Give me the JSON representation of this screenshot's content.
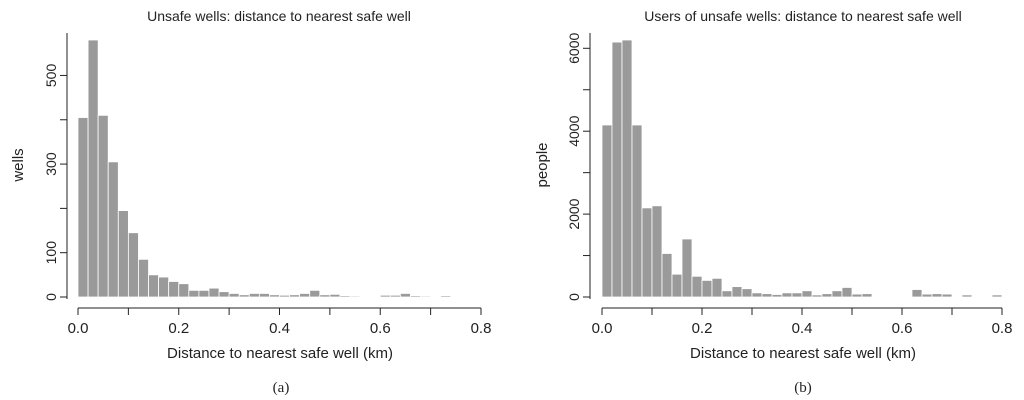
{
  "chart_data": [
    {
      "type": "bar",
      "title": "Unsafe wells:  distance to nearest safe well",
      "xlabel": "Distance to nearest safe well (km)",
      "ylabel": "wells",
      "caption": "(a)",
      "bin_width": 0.02,
      "bin_start": 0.0,
      "values": [
        405,
        580,
        410,
        305,
        195,
        145,
        85,
        50,
        45,
        35,
        30,
        15,
        15,
        20,
        12,
        8,
        5,
        8,
        8,
        5,
        4,
        5,
        8,
        15,
        5,
        6,
        3,
        1,
        0,
        0,
        4,
        4,
        8,
        3,
        2,
        0,
        3,
        0,
        0,
        0
      ],
      "x_ticks": [
        "0.0",
        "0.2",
        "0.4",
        "0.6",
        "0.8"
      ],
      "y_ticks": [
        "0",
        "100",
        "300",
        "500"
      ],
      "xlim": [
        0.0,
        0.8
      ],
      "ylim": [
        0,
        580
      ]
    },
    {
      "type": "bar",
      "title": "Users of unsafe wells:  distance to nearest safe well",
      "xlabel": "Distance to nearest safe well (km)",
      "ylabel": "people",
      "caption": "(b)",
      "bin_width": 0.02,
      "bin_start": 0.0,
      "values": [
        4150,
        6150,
        6200,
        4150,
        2150,
        2200,
        1050,
        550,
        1400,
        500,
        400,
        450,
        150,
        250,
        200,
        100,
        80,
        60,
        100,
        100,
        150,
        50,
        80,
        150,
        230,
        70,
        80,
        0,
        0,
        0,
        0,
        180,
        70,
        80,
        70,
        0,
        50,
        0,
        0,
        50
      ],
      "x_ticks": [
        "0.0",
        "0.2",
        "0.4",
        "0.6",
        "0.8"
      ],
      "y_ticks": [
        "0",
        "2000",
        "4000",
        "6000"
      ],
      "xlim": [
        0.0,
        0.8
      ],
      "ylim": [
        0,
        6200
      ]
    }
  ]
}
